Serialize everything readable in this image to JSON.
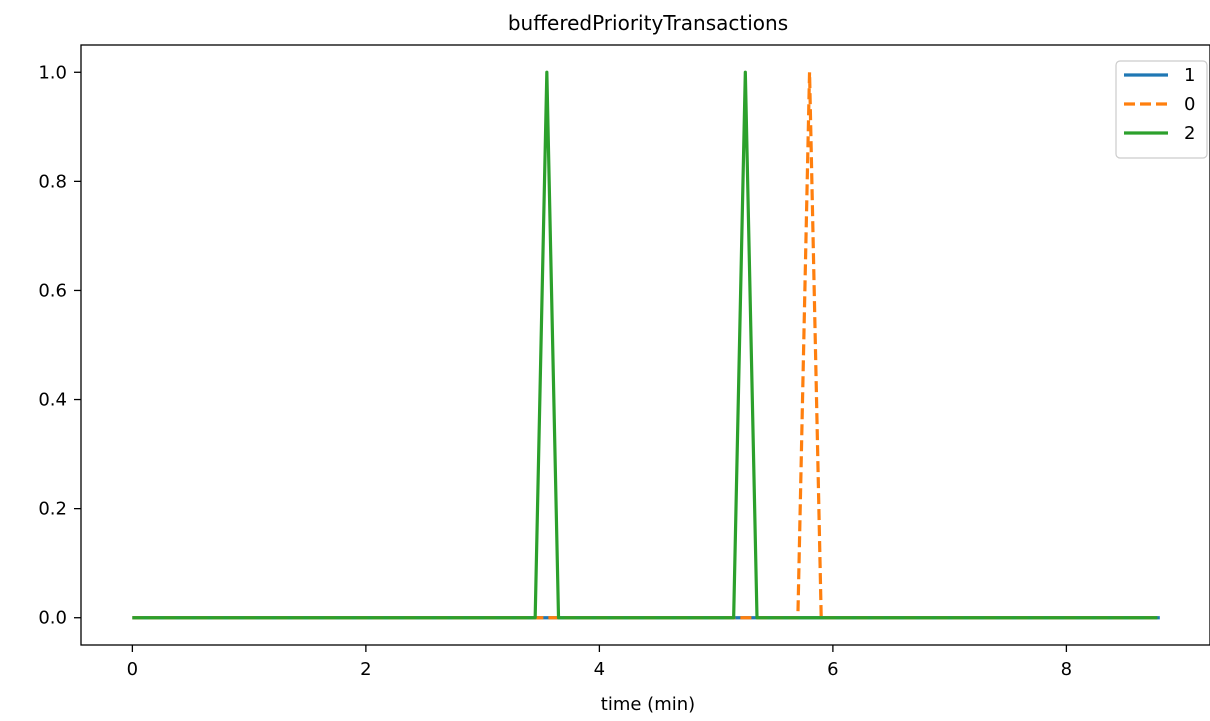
{
  "chart_data": {
    "type": "line",
    "title": "bufferedPriorityTransactions",
    "xlabel": "time (min)",
    "ylabel": "",
    "xlim": [
      -0.44,
      9.23
    ],
    "ylim": [
      -0.05,
      1.05
    ],
    "x_ticks": [
      "0",
      "2",
      "4",
      "6",
      "8"
    ],
    "y_ticks": [
      "0.0",
      "0.2",
      "0.4",
      "0.6",
      "0.8",
      "1.0"
    ],
    "x_tick_values": [
      0,
      2,
      4,
      6,
      8
    ],
    "y_tick_values": [
      0,
      0.2,
      0.4,
      0.6,
      0.8,
      1.0
    ],
    "grid": false,
    "legend_position": "top-right",
    "series": [
      {
        "name": "1",
        "color": "#1f77b4",
        "style": "solid",
        "x": [
          0,
          8.8
        ],
        "y": [
          0,
          0
        ]
      },
      {
        "name": "0",
        "color": "#ff7f0e",
        "style": "dashed",
        "x": [
          0,
          5.7,
          5.8,
          5.9,
          8.8
        ],
        "y": [
          0,
          0,
          1,
          0,
          0
        ]
      },
      {
        "name": "2",
        "color": "#2ca02c",
        "style": "solid",
        "x": [
          0,
          3.45,
          3.55,
          3.65,
          5.15,
          5.25,
          5.35,
          8.78
        ],
        "y": [
          0,
          0,
          1,
          0,
          0,
          1,
          0,
          0
        ]
      }
    ]
  }
}
